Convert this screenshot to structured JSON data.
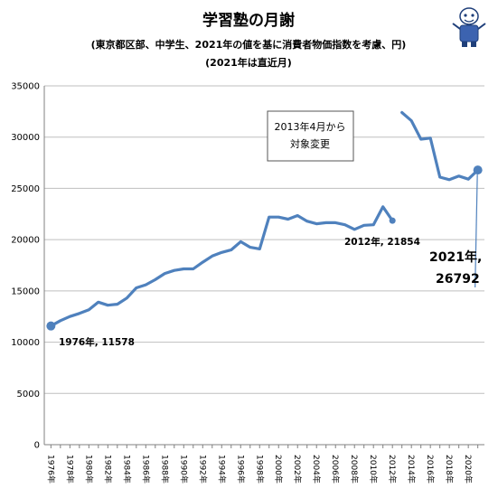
{
  "header": {
    "title": "学習塾の月謝",
    "subtitle_line1": "(東京都区部、中学生、2021年の値を基に消費者物価指数を考慮、円)",
    "subtitle_line2": "(2021年は直近月)"
  },
  "colors": {
    "line": "#4F81BD",
    "grid": "#BFBFBF",
    "frame": "#808080"
  },
  "chart_data": {
    "type": "line",
    "title": "学習塾の月謝",
    "ylim": [
      0,
      35000
    ],
    "y_ticks": [
      "0",
      "5000",
      "10000",
      "15000",
      "20000",
      "25000",
      "30000",
      "35000"
    ],
    "x_tick_labels": [
      "1976年",
      "1978年",
      "1980年",
      "1982年",
      "1984年",
      "1986年",
      "1988年",
      "1990年",
      "1992年",
      "1994年",
      "1996年",
      "1998年",
      "2000年",
      "2002年",
      "2004年",
      "2006年",
      "2008年",
      "2010年",
      "2012年",
      "2014年",
      "2016年",
      "2018年",
      "2020年"
    ],
    "series": [
      {
        "segment": "1976-2012",
        "x": [
          1976,
          1977,
          1978,
          1979,
          1980,
          1981,
          1982,
          1983,
          1984,
          1985,
          1986,
          1987,
          1988,
          1989,
          1990,
          1991,
          1992,
          1993,
          1994,
          1995,
          1996,
          1997,
          1998,
          1999,
          2000,
          2001,
          2002,
          2003,
          2004,
          2005,
          2006,
          2007,
          2008,
          2009,
          2010,
          2011,
          2012
        ],
        "values": [
          11578,
          12100,
          12500,
          12800,
          13150,
          13900,
          13600,
          13700,
          14300,
          15300,
          15600,
          16100,
          16700,
          17000,
          17150,
          17150,
          17800,
          18400,
          18750,
          19000,
          19800,
          19250,
          19100,
          22200,
          22200,
          22000,
          22350,
          21800,
          21550,
          21650,
          21650,
          21450,
          21000,
          21400,
          21450,
          23200,
          21854
        ]
      },
      {
        "segment": "2013-2021",
        "x": [
          2013,
          2014,
          2015,
          2016,
          2017,
          2018,
          2019,
          2020,
          2021
        ],
        "values": [
          32400,
          31600,
          29800,
          29900,
          26100,
          25850,
          26200,
          25900,
          26792
        ]
      }
    ],
    "annotations": {
      "start": "1976年, 11578",
      "break": "2012年, 21854",
      "end_line1": "2021年,",
      "end_line2": "26792",
      "callout_line1": "2013年4月から",
      "callout_line2": "対象変更"
    }
  }
}
